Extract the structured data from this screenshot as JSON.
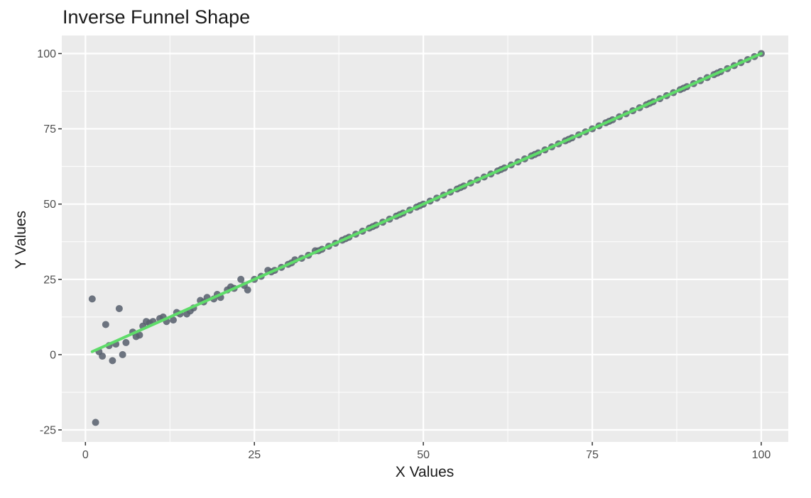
{
  "chart_data": {
    "type": "scatter",
    "title": "Inverse Funnel Shape",
    "xlabel": "X Values",
    "ylabel": "Y Values",
    "xlim": [
      -3.5,
      104
    ],
    "ylim": [
      -29,
      106
    ],
    "x_ticks": [
      0,
      25,
      50,
      75,
      100
    ],
    "y_ticks": [
      -25,
      0,
      25,
      50,
      75,
      100
    ],
    "grid": true,
    "legend": "none",
    "colors": {
      "panel": "#ebebeb",
      "grid": "#ffffff",
      "points": "#5a6270",
      "fit_line": "#5fdc6a"
    },
    "fit_line": {
      "x": [
        1,
        100
      ],
      "y": [
        1,
        100
      ]
    },
    "points": {
      "x": [
        1,
        2,
        3,
        4,
        5,
        6,
        7,
        8,
        9,
        10,
        11,
        12,
        13,
        14,
        15,
        16,
        17,
        18,
        19,
        20,
        21,
        22,
        23,
        24,
        25,
        26,
        27,
        28,
        29,
        30,
        31,
        32,
        33,
        34,
        35,
        36,
        37,
        38,
        39,
        40,
        41,
        42,
        43,
        44,
        45,
        46,
        47,
        48,
        49,
        50,
        51,
        52,
        53,
        54,
        55,
        56,
        57,
        58,
        59,
        60,
        61,
        62,
        63,
        64,
        65,
        66,
        67,
        68,
        69,
        70,
        71,
        72,
        73,
        74,
        75,
        76,
        77,
        78,
        79,
        80,
        81,
        82,
        83,
        84,
        85,
        86,
        87,
        88,
        89,
        90,
        91,
        92,
        93,
        94,
        95,
        96,
        97,
        98,
        99,
        100,
        1.5,
        2.5,
        3.5,
        4.5,
        5.5,
        7.5,
        8.5,
        9.5,
        11.5,
        13.5,
        15.5,
        17.5,
        19.5,
        21.5,
        23.5,
        27.5,
        30.5,
        34.5,
        38.5,
        42.5,
        46.5,
        49.5,
        55.5,
        61.5,
        66.5,
        71.5,
        77.5,
        83.5,
        88.5,
        93.5
      ],
      "y": [
        18.5,
        1,
        10,
        -2,
        15.3,
        4,
        7.5,
        6.5,
        11,
        11,
        12,
        11,
        11.5,
        13.5,
        13.5,
        15.5,
        18,
        19,
        18.5,
        19,
        21.5,
        22,
        25,
        21.5,
        25,
        26,
        28,
        28,
        29,
        30,
        31.5,
        32,
        33,
        34.5,
        35,
        36,
        37,
        38,
        39,
        40,
        41,
        42,
        43,
        44,
        45,
        46,
        47,
        48,
        49,
        50,
        51,
        52,
        53,
        54,
        55,
        56,
        57,
        58,
        59,
        60,
        61,
        62,
        63,
        64,
        65,
        66,
        67,
        68,
        69,
        70,
        71,
        72,
        73,
        74,
        75,
        76,
        77,
        78,
        79,
        80,
        81,
        82,
        83,
        84,
        85,
        86,
        87,
        88,
        89,
        90,
        91,
        92,
        93,
        94,
        95,
        96,
        97,
        98,
        99,
        100,
        -22.5,
        -0.5,
        3,
        3.5,
        0,
        6,
        9.5,
        10.5,
        12.5,
        14,
        14.5,
        17.5,
        20,
        22.5,
        23,
        27.5,
        30.5,
        34.5,
        38.5,
        42.5,
        46.5,
        49.5,
        55.5,
        61.5,
        66.5,
        71.5,
        77.5,
        83.5,
        88.5,
        93.5
      ]
    }
  }
}
